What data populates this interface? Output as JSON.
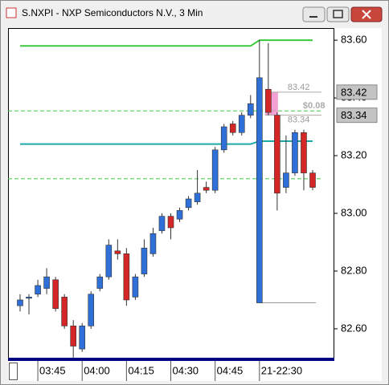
{
  "chart_data": {
    "type": "candlestick",
    "title": "S.NXPI - NXP Semiconductors N.V., 3 Min",
    "categories": [
      null,
      null,
      "03:45",
      null,
      null,
      null,
      null,
      "04:00",
      null,
      null,
      null,
      null,
      "04:15",
      null,
      null,
      null,
      null,
      "04:30",
      null,
      null,
      null,
      null,
      "04:45",
      null,
      null,
      null,
      null,
      "21-22:30",
      null,
      null,
      null,
      null,
      null,
      null
    ],
    "open": [
      82.68,
      82.71,
      82.72,
      82.74,
      82.77,
      82.71,
      82.61,
      82.53,
      82.61,
      82.74,
      82.78,
      82.87,
      82.86,
      82.71,
      82.79,
      82.86,
      82.94,
      82.99,
      82.98,
      83.02,
      83.04,
      83.09,
      83.08,
      83.22,
      83.31,
      83.28,
      83.34,
      82.69,
      83.43,
      83.34,
      83.09,
      83.14,
      83.28,
      83.14
    ],
    "high": [
      82.72,
      82.72,
      82.77,
      82.81,
      82.78,
      82.72,
      82.63,
      82.62,
      82.73,
      82.79,
      82.91,
      82.91,
      82.88,
      82.79,
      82.91,
      82.95,
      83.0,
      83.0,
      83.02,
      83.06,
      83.15,
      83.11,
      83.23,
      83.31,
      83.32,
      83.35,
      83.41,
      83.6,
      83.59,
      83.35,
      83.27,
      83.29,
      83.29,
      83.15
    ],
    "low": [
      82.66,
      82.65,
      82.71,
      82.72,
      82.66,
      82.6,
      82.5,
      82.52,
      82.6,
      82.73,
      82.77,
      82.84,
      82.68,
      82.7,
      82.78,
      82.85,
      82.93,
      82.91,
      82.97,
      83.01,
      83.03,
      83.07,
      83.07,
      83.21,
      83.27,
      83.27,
      83.33,
      82.69,
      83.34,
      83.01,
      83.07,
      83.13,
      83.08,
      83.08
    ],
    "close": [
      82.7,
      82.71,
      82.75,
      82.78,
      82.67,
      82.61,
      82.54,
      82.61,
      82.72,
      82.78,
      82.89,
      82.86,
      82.7,
      82.78,
      82.88,
      82.93,
      82.99,
      82.95,
      83.01,
      83.05,
      83.07,
      83.08,
      83.22,
      83.3,
      83.28,
      83.34,
      83.38,
      83.47,
      83.35,
      83.07,
      83.14,
      83.28,
      83.14,
      83.09
    ],
    "up_color": "#2f6fd8",
    "down_color": "#d42626",
    "lines": [
      {
        "color": "#3cc83c",
        "values": [
          83.58,
          83.58,
          83.58,
          83.58,
          83.58,
          83.58,
          83.58,
          83.58,
          83.58,
          83.58,
          83.58,
          83.58,
          83.58,
          83.58,
          83.58,
          83.58,
          83.58,
          83.58,
          83.58,
          83.58,
          83.58,
          83.58,
          83.58,
          83.58,
          83.58,
          83.58,
          83.58,
          83.6,
          83.6,
          83.6,
          83.6,
          83.6,
          83.6,
          83.6
        ]
      },
      {
        "color": "#1fa8a8",
        "values": [
          83.24,
          83.24,
          83.24,
          83.24,
          83.24,
          83.24,
          83.24,
          83.24,
          83.24,
          83.24,
          83.24,
          83.24,
          83.24,
          83.24,
          83.24,
          83.24,
          83.24,
          83.24,
          83.24,
          83.24,
          83.24,
          83.24,
          83.24,
          83.24,
          83.24,
          83.24,
          83.24,
          83.25,
          83.25,
          83.25,
          83.25,
          83.25,
          83.25,
          83.25
        ]
      }
    ],
    "hlines": [
      {
        "value": 83.355,
        "color": "#3cc83c",
        "dashed": true
      },
      {
        "value": 83.12,
        "color": "#3cc83c",
        "dashed": true
      },
      {
        "value": 82.69,
        "color": "#999999",
        "dashed": false
      }
    ],
    "measure": {
      "from": 83.42,
      "to": 83.34,
      "difference": {
        "value": 0.08,
        "label": "$0.08"
      }
    },
    "price_flags": [
      83.42,
      83.34
    ],
    "ylim": [
      82.497,
      83.642
    ],
    "yticks": [
      {
        "value": 82.6,
        "label": "82.60"
      },
      {
        "value": 82.8,
        "label": "82.80"
      },
      {
        "value": 83.0,
        "label": "83.00"
      },
      {
        "value": 83.2,
        "label": "83.20"
      },
      {
        "value": 83.4,
        "label": "83.40"
      },
      {
        "value": 83.6,
        "label": "83.60"
      }
    ]
  }
}
